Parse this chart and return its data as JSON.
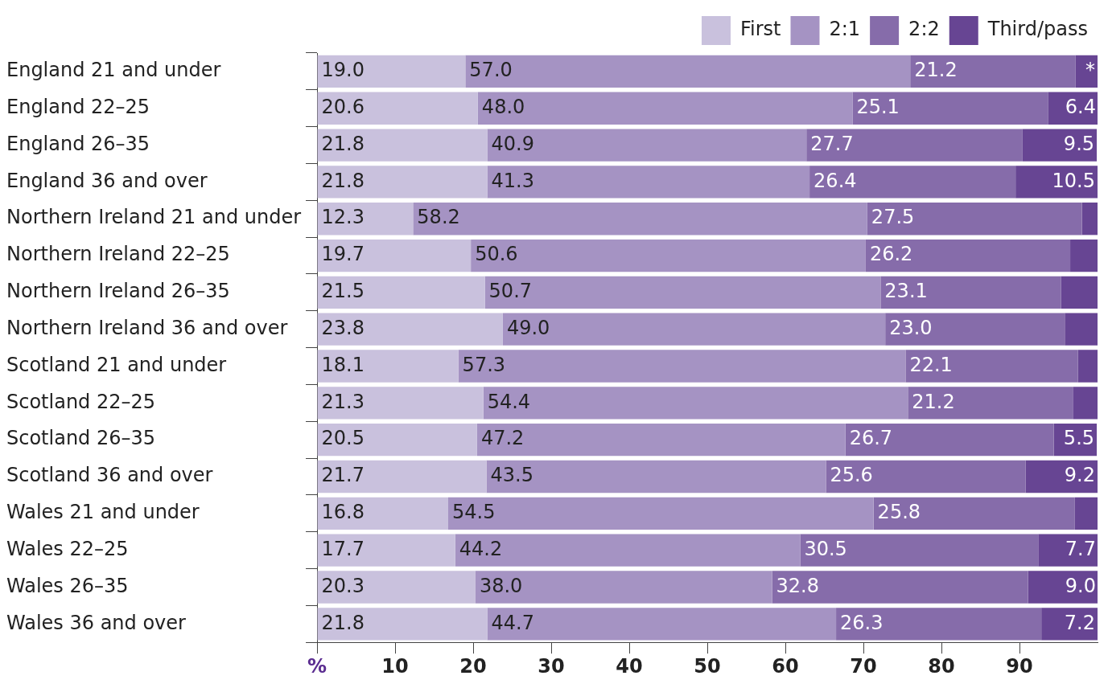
{
  "chart_data": {
    "type": "bar",
    "orientation": "horizontal",
    "stacked": true,
    "categories": [
      "England 21 and under",
      "England 22–25",
      "England 26–35",
      "England 36 and over",
      "Northern Ireland 21 and under",
      "Northern Ireland 22–25",
      "Northern Ireland 26–35",
      "Northern Ireland 36 and over",
      "Scotland 21 and under",
      "Scotland 22–25",
      "Scotland 26–35",
      "Scotland 36 and over",
      "Wales 21 and under",
      "Wales 22–25",
      "Wales 26–35",
      "Wales 36 and over"
    ],
    "series": [
      {
        "name": "First",
        "color": "#c9c1dd",
        "values": [
          19.0,
          20.6,
          21.8,
          21.8,
          12.3,
          19.7,
          21.5,
          23.8,
          18.1,
          21.3,
          20.5,
          21.7,
          16.8,
          17.7,
          20.3,
          21.8
        ],
        "value_labels": [
          "19.0",
          "20.6",
          "21.8",
          "21.8",
          "12.3",
          "19.7",
          "21.5",
          "23.8",
          "18.1",
          "21.3",
          "20.5",
          "21.7",
          "16.8",
          "17.7",
          "20.3",
          "21.8"
        ]
      },
      {
        "name": "2:1",
        "color": "#a593c3",
        "values": [
          57.0,
          48.0,
          40.9,
          41.3,
          58.2,
          50.6,
          50.7,
          49.0,
          57.3,
          54.4,
          47.2,
          43.5,
          54.5,
          44.2,
          38.0,
          44.7
        ],
        "value_labels": [
          "57.0",
          "48.0",
          "40.9",
          "41.3",
          "58.2",
          "50.6",
          "50.7",
          "49.0",
          "57.3",
          "54.4",
          "47.2",
          "43.5",
          "54.5",
          "44.2",
          "38.0",
          "44.7"
        ]
      },
      {
        "name": "2:2",
        "color": "#866caa",
        "values": [
          21.2,
          25.1,
          27.7,
          26.4,
          27.5,
          26.2,
          23.1,
          23.0,
          22.1,
          21.2,
          26.7,
          25.6,
          25.8,
          30.5,
          32.8,
          26.3
        ],
        "value_labels": [
          "21.2",
          "25.1",
          "27.7",
          "26.4",
          "27.5",
          "26.2",
          "23.1",
          "23.0",
          "22.1",
          "21.2",
          "26.7",
          "25.6",
          "25.8",
          "30.5",
          "32.8",
          "26.3"
        ]
      },
      {
        "name": "Third/pass",
        "color": "#674593",
        "values": [
          2.8,
          6.4,
          9.5,
          10.5,
          2.0,
          3.5,
          4.7,
          4.2,
          2.5,
          3.1,
          5.5,
          9.2,
          2.9,
          7.7,
          9.0,
          7.2
        ],
        "value_labels": [
          "*",
          "6.4",
          "9.5",
          "10.5",
          null,
          null,
          null,
          null,
          null,
          null,
          "5.5",
          "9.2",
          null,
          "7.7",
          "9.0",
          "7.2"
        ]
      }
    ],
    "xlim": [
      0,
      100
    ],
    "xticks": [
      {
        "value": 0,
        "label": "%"
      },
      10,
      20,
      30,
      40,
      50,
      60,
      70,
      80,
      90
    ],
    "grid": false,
    "legend": "top"
  }
}
